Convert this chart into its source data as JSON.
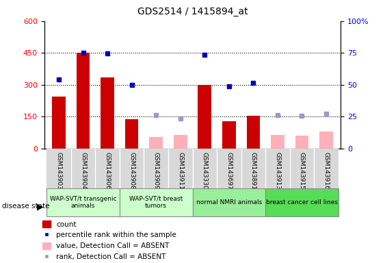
{
  "title": "GDS2514 / 1415894_at",
  "samples": [
    "GSM143903",
    "GSM143904",
    "GSM143906",
    "GSM143908",
    "GSM143909",
    "GSM143911",
    "GSM143330",
    "GSM143697",
    "GSM143891",
    "GSM143913",
    "GSM143915",
    "GSM143916"
  ],
  "count_values": [
    245,
    450,
    335,
    140,
    null,
    null,
    300,
    130,
    155,
    null,
    null,
    null
  ],
  "count_absent": [
    null,
    null,
    null,
    null,
    55,
    65,
    null,
    null,
    null,
    65,
    60,
    80
  ],
  "percentile_values": [
    325,
    450,
    448,
    298,
    null,
    null,
    440,
    292,
    308,
    null,
    null,
    null
  ],
  "percentile_absent": [
    null,
    null,
    null,
    null,
    158,
    143,
    null,
    null,
    null,
    158,
    155,
    165
  ],
  "left_ylim": [
    0,
    600
  ],
  "left_yticks": [
    0,
    150,
    300,
    450,
    600
  ],
  "right_ytick_labels": [
    "0",
    "25",
    "50",
    "75",
    "100%"
  ],
  "bar_color": "#cc0000",
  "bar_absent_color": "#ffb0b8",
  "dot_color": "#0000bb",
  "dot_absent_color": "#9999cc",
  "grid_lines": [
    150,
    300,
    450
  ],
  "group_colors": [
    "#ccffcc",
    "#ccffcc",
    "#99ee99",
    "#55dd55"
  ],
  "group_labels": [
    "WAP-SVT/t transgenic\nanimals",
    "WAP-SVT/t breast\ntumors",
    "normal NMRI animals",
    "breast cancer cell lines"
  ],
  "group_ranges": [
    [
      0,
      3
    ],
    [
      3,
      6
    ],
    [
      6,
      9
    ],
    [
      9,
      12
    ]
  ],
  "legend_labels": [
    "count",
    "percentile rank within the sample",
    "value, Detection Call = ABSENT",
    "rank, Detection Call = ABSENT"
  ]
}
